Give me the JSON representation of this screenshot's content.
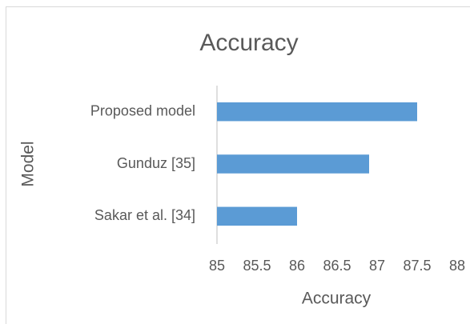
{
  "chart_data": {
    "type": "bar",
    "orientation": "horizontal",
    "title": "Accuracy",
    "x_label": "Accuracy",
    "y_label": "Model",
    "categories": [
      "Proposed model",
      "Gunduz [35]",
      "Sakar et al. [34]"
    ],
    "values": [
      87.5,
      86.9,
      86
    ],
    "color": "#5b9bd5",
    "xlim": [
      85,
      88
    ],
    "xticks": [
      85,
      85.5,
      86,
      86.5,
      87,
      87.5,
      88
    ],
    "grid": false
  }
}
